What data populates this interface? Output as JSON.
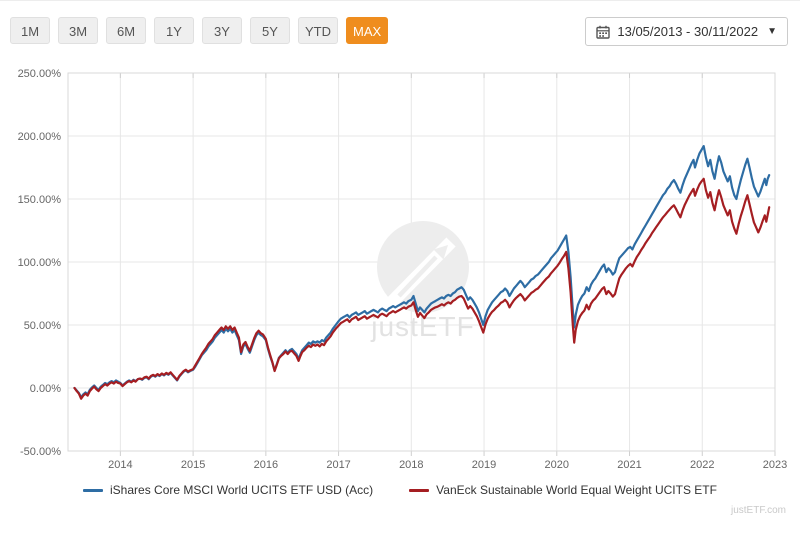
{
  "toolbar": {
    "ranges": [
      {
        "label": "1M",
        "active": false
      },
      {
        "label": "3M",
        "active": false
      },
      {
        "label": "6M",
        "active": false
      },
      {
        "label": "1Y",
        "active": false
      },
      {
        "label": "3Y",
        "active": false
      },
      {
        "label": "5Y",
        "active": false
      },
      {
        "label": "YTD",
        "active": false
      },
      {
        "label": "MAX",
        "active": true
      }
    ],
    "active_color": "#ef8d1e",
    "date_range": {
      "value": "13/05/2013 - 30/11/2022",
      "calendar_icon": "calendar-icon",
      "caret_icon": "caret-down-icon"
    }
  },
  "footer": {
    "attribution": "justETF.com"
  },
  "chart_data": {
    "type": "line",
    "title": "",
    "xlabel": "",
    "ylabel": "",
    "grid": true,
    "legend_position": "bottom",
    "ylim": [
      -50,
      250
    ],
    "xlim": [
      2013.28,
      2023.0
    ],
    "ytick_values": [
      250,
      200,
      150,
      100,
      50,
      0,
      -50
    ],
    "ytick_labels": [
      "250.00%",
      "200.00%",
      "150.00%",
      "100.00%",
      "50.00%",
      "0.00%",
      "-50.00%"
    ],
    "xtick_values": [
      2014,
      2015,
      2016,
      2017,
      2018,
      2019,
      2020,
      2021,
      2022,
      2023
    ],
    "xtick_labels": [
      "2014",
      "2015",
      "2016",
      "2017",
      "2018",
      "2019",
      "2020",
      "2021",
      "2022",
      "2023"
    ],
    "watermark": {
      "text": "justETF",
      "logo": "justetf-arrow-circle-logo"
    },
    "x": [
      2013.37,
      2013.4,
      2013.43,
      2013.46,
      2013.49,
      2013.52,
      2013.55,
      2013.58,
      2013.61,
      2013.64,
      2013.67,
      2013.7,
      2013.73,
      2013.76,
      2013.79,
      2013.82,
      2013.85,
      2013.88,
      2013.91,
      2013.94,
      2013.97,
      2014.0,
      2014.03,
      2014.06,
      2014.09,
      2014.12,
      2014.15,
      2014.18,
      2014.21,
      2014.24,
      2014.27,
      2014.3,
      2014.33,
      2014.36,
      2014.39,
      2014.42,
      2014.45,
      2014.48,
      2014.51,
      2014.54,
      2014.57,
      2014.6,
      2014.63,
      2014.66,
      2014.69,
      2014.72,
      2014.75,
      2014.78,
      2014.81,
      2014.84,
      2014.87,
      2014.9,
      2014.93,
      2014.96,
      2015.0,
      2015.03,
      2015.06,
      2015.09,
      2015.12,
      2015.15,
      2015.18,
      2015.21,
      2015.24,
      2015.27,
      2015.3,
      2015.33,
      2015.36,
      2015.39,
      2015.42,
      2015.45,
      2015.48,
      2015.51,
      2015.54,
      2015.57,
      2015.6,
      2015.63,
      2015.66,
      2015.69,
      2015.72,
      2015.75,
      2015.78,
      2015.81,
      2015.84,
      2015.87,
      2015.9,
      2015.93,
      2015.96,
      2016.0,
      2016.03,
      2016.06,
      2016.09,
      2016.12,
      2016.15,
      2016.18,
      2016.21,
      2016.24,
      2016.27,
      2016.3,
      2016.33,
      2016.36,
      2016.39,
      2016.42,
      2016.45,
      2016.47,
      2016.5,
      2016.53,
      2016.56,
      2016.59,
      2016.62,
      2016.65,
      2016.68,
      2016.71,
      2016.74,
      2016.77,
      2016.8,
      2016.83,
      2016.86,
      2016.89,
      2016.92,
      2016.96,
      2017.0,
      2017.03,
      2017.06,
      2017.09,
      2017.12,
      2017.15,
      2017.18,
      2017.21,
      2017.24,
      2017.27,
      2017.3,
      2017.33,
      2017.36,
      2017.39,
      2017.42,
      2017.45,
      2017.48,
      2017.51,
      2017.54,
      2017.57,
      2017.6,
      2017.63,
      2017.66,
      2017.69,
      2017.72,
      2017.75,
      2017.78,
      2017.81,
      2017.84,
      2017.87,
      2017.9,
      2017.93,
      2017.96,
      2018.0,
      2018.03,
      2018.06,
      2018.09,
      2018.12,
      2018.15,
      2018.18,
      2018.21,
      2018.24,
      2018.27,
      2018.3,
      2018.33,
      2018.36,
      2018.39,
      2018.42,
      2018.45,
      2018.48,
      2018.51,
      2018.54,
      2018.57,
      2018.6,
      2018.63,
      2018.66,
      2018.69,
      2018.72,
      2018.75,
      2018.78,
      2018.81,
      2018.84,
      2018.87,
      2018.9,
      2018.93,
      2018.96,
      2018.99,
      2019.02,
      2019.05,
      2019.08,
      2019.11,
      2019.14,
      2019.17,
      2019.2,
      2019.23,
      2019.26,
      2019.29,
      2019.32,
      2019.35,
      2019.38,
      2019.41,
      2019.44,
      2019.47,
      2019.5,
      2019.53,
      2019.56,
      2019.59,
      2019.62,
      2019.65,
      2019.68,
      2019.71,
      2019.74,
      2019.77,
      2019.8,
      2019.83,
      2019.86,
      2019.89,
      2019.92,
      2019.95,
      2019.98,
      2020.01,
      2020.04,
      2020.07,
      2020.1,
      2020.13,
      2020.16,
      2020.19,
      2020.22,
      2020.24,
      2020.26,
      2020.29,
      2020.32,
      2020.35,
      2020.38,
      2020.41,
      2020.44,
      2020.47,
      2020.5,
      2020.53,
      2020.56,
      2020.59,
      2020.62,
      2020.65,
      2020.68,
      2020.71,
      2020.74,
      2020.77,
      2020.8,
      2020.83,
      2020.86,
      2020.89,
      2020.92,
      2020.95,
      2020.98,
      2021.01,
      2021.04,
      2021.07,
      2021.1,
      2021.13,
      2021.16,
      2021.19,
      2021.22,
      2021.25,
      2021.28,
      2021.31,
      2021.34,
      2021.37,
      2021.4,
      2021.43,
      2021.46,
      2021.49,
      2021.52,
      2021.55,
      2021.58,
      2021.61,
      2021.64,
      2021.67,
      2021.7,
      2021.73,
      2021.76,
      2021.79,
      2021.82,
      2021.85,
      2021.88,
      2021.9,
      2021.93,
      2021.96,
      2021.99,
      2022.02,
      2022.05,
      2022.08,
      2022.11,
      2022.14,
      2022.17,
      2022.2,
      2022.23,
      2022.26,
      2022.29,
      2022.32,
      2022.35,
      2022.38,
      2022.41,
      2022.44,
      2022.47,
      2022.5,
      2022.53,
      2022.56,
      2022.59,
      2022.62,
      2022.65,
      2022.68,
      2022.71,
      2022.74,
      2022.77,
      2022.8,
      2022.83,
      2022.86,
      2022.88,
      2022.9,
      2022.92
    ],
    "series": [
      {
        "name": "iShares Core MSCI World UCITS ETF USD (Acc)",
        "color": "#2e6da4",
        "values": [
          0,
          -2,
          -4,
          -7.5,
          -5,
          -3.5,
          -5,
          -1.5,
          0.5,
          2,
          0,
          -1.5,
          1,
          2.5,
          4,
          3,
          4.5,
          5.5,
          4.5,
          6,
          5,
          4,
          2,
          3.5,
          5,
          6,
          5,
          6.5,
          5.5,
          7,
          7.5,
          6.5,
          8,
          8.5,
          7,
          9,
          10,
          9,
          10.5,
          9.5,
          11,
          10,
          11.5,
          10.5,
          12,
          10,
          8,
          6,
          9,
          11,
          13,
          14,
          12.5,
          13.5,
          14.5,
          17,
          20,
          23,
          26,
          28,
          30,
          33,
          35,
          37,
          40,
          42,
          44,
          46,
          44,
          47,
          45,
          47,
          44,
          46,
          42,
          38,
          27,
          33,
          35,
          31,
          28,
          33,
          38,
          42,
          44,
          42,
          41,
          38,
          31,
          25,
          20,
          14,
          19,
          24,
          26,
          28,
          30,
          28,
          30,
          31,
          29,
          27,
          23,
          26,
          30,
          32,
          34,
          36,
          35,
          37,
          36,
          37,
          36,
          38,
          37,
          40,
          42,
          44,
          47,
          50,
          53,
          55,
          56,
          57,
          58,
          56,
          58,
          59,
          60,
          58,
          59,
          60,
          61,
          59,
          60,
          61,
          62,
          61,
          60,
          62,
          63,
          62,
          61,
          63,
          64,
          65,
          64,
          65,
          66,
          67,
          68,
          67,
          69,
          70,
          73,
          67,
          61,
          64,
          62,
          60,
          63,
          65,
          67,
          68,
          69,
          70,
          71,
          72,
          71,
          73,
          74,
          73,
          75,
          76,
          78,
          79,
          80,
          78,
          74,
          70,
          72,
          70,
          67,
          64,
          60,
          55,
          50,
          57,
          62,
          65,
          68,
          70,
          72,
          74,
          76,
          77,
          79,
          77,
          73,
          76,
          79,
          81,
          83,
          85,
          83,
          80,
          82,
          84,
          86,
          87,
          89,
          90,
          92,
          94,
          96,
          98,
          100,
          103,
          105,
          107,
          109,
          112,
          115,
          118,
          121,
          108,
          88,
          62,
          48,
          58,
          66,
          70,
          73,
          75,
          80,
          77,
          82,
          85,
          87,
          90,
          93,
          96,
          98,
          92,
          95,
          93,
          90,
          92,
          98,
          103,
          105,
          107,
          109,
          111,
          112,
          110,
          114,
          117,
          120,
          123,
          126,
          129,
          132,
          135,
          138,
          141,
          144,
          147,
          150,
          153,
          155,
          158,
          160,
          163,
          165,
          162,
          158,
          155,
          161,
          166,
          170,
          174,
          178,
          181,
          175,
          181,
          186,
          189,
          192,
          183,
          176,
          181,
          172,
          166,
          176,
          184,
          179,
          172,
          168,
          164,
          168,
          159,
          153,
          150,
          158,
          165,
          171,
          177,
          182,
          175,
          167,
          160,
          156,
          152,
          156,
          161,
          166,
          161,
          166,
          169
        ]
      },
      {
        "name": "VanEck Sustainable World Equal Weight UCITS ETF",
        "color": "#a51e22",
        "values": [
          0,
          -2.5,
          -4.5,
          -8.5,
          -6,
          -4.5,
          -6,
          -2.5,
          -0.5,
          1,
          -1,
          -2.5,
          0,
          1.5,
          3,
          2,
          3.5,
          4.5,
          3.5,
          5,
          4,
          3.5,
          1.5,
          3,
          4.5,
          5.5,
          4.5,
          6,
          5,
          7,
          7.5,
          7,
          8.5,
          9,
          7.5,
          9.5,
          10.5,
          9.5,
          11,
          10,
          11.5,
          10.5,
          12,
          11,
          12.5,
          10.5,
          8.5,
          6.5,
          9.5,
          11.5,
          13.5,
          14.5,
          13,
          14,
          15,
          18,
          21,
          24,
          27,
          29.5,
          32,
          35,
          37,
          39,
          42,
          44,
          46,
          48,
          46,
          49,
          47,
          49,
          46,
          48,
          44,
          40,
          28.5,
          34.5,
          36.5,
          32.5,
          29.5,
          34.5,
          39.5,
          43.5,
          45.5,
          43.5,
          42.5,
          39,
          32,
          26,
          20.5,
          13.5,
          18.5,
          23.5,
          25.5,
          27,
          29,
          27,
          29,
          29.5,
          27.5,
          25.5,
          21.5,
          24.5,
          28.5,
          30,
          32,
          33.5,
          32.5,
          34.5,
          33.5,
          34.5,
          33,
          35,
          34,
          37,
          39,
          41,
          44,
          47,
          49.5,
          51.5,
          52.5,
          53.5,
          54.5,
          52.5,
          54.5,
          55.5,
          56.5,
          54,
          55,
          56,
          57,
          55,
          56,
          57,
          58,
          57,
          56,
          58,
          59,
          58,
          57,
          59,
          60,
          61,
          60,
          61,
          62,
          63,
          64,
          63,
          64.5,
          65.5,
          68,
          62,
          56.5,
          59.5,
          57.5,
          55.5,
          58.5,
          60,
          62,
          63,
          64,
          64.5,
          65.5,
          66.5,
          65.5,
          67,
          68,
          67,
          69,
          70,
          71.5,
          72.5,
          73,
          71,
          67,
          63,
          65,
          63,
          60,
          57,
          53,
          48.5,
          44,
          50.5,
          55,
          58,
          60.5,
          62,
          64,
          65.5,
          67.5,
          68.5,
          70,
          68,
          64,
          67,
          69.5,
          71.5,
          73,
          74.5,
          72.5,
          69.5,
          71.5,
          73.5,
          75.5,
          76.5,
          78,
          79,
          81,
          83,
          85,
          87,
          88.5,
          91,
          93,
          95,
          97,
          99.5,
          102.5,
          105,
          108,
          95,
          76,
          50,
          36,
          46,
          53,
          57,
          59.5,
          61.5,
          66,
          62.5,
          67,
          69.5,
          71,
          73.5,
          76,
          78.5,
          80,
          74.5,
          77,
          75,
          72.5,
          74.5,
          81,
          87,
          90,
          92.5,
          95,
          97,
          98.5,
          96.5,
          100.5,
          104,
          106.5,
          109.5,
          112,
          115,
          117.5,
          120,
          123,
          125.5,
          128,
          130.5,
          133,
          135.5,
          137.5,
          139.5,
          141.5,
          143.5,
          145,
          142,
          138.5,
          135.5,
          141,
          145.5,
          149,
          152.5,
          155.5,
          158,
          152.5,
          157.5,
          161.5,
          164,
          166,
          157,
          151,
          155.5,
          147,
          141,
          150,
          157,
          151.5,
          145,
          141,
          137,
          141,
          132,
          126.5,
          122.5,
          130,
          136.5,
          142,
          148,
          153,
          146,
          138.5,
          131.5,
          127.5,
          123.5,
          127.5,
          132.5,
          137,
          132,
          137.5,
          143.5
        ]
      }
    ]
  }
}
